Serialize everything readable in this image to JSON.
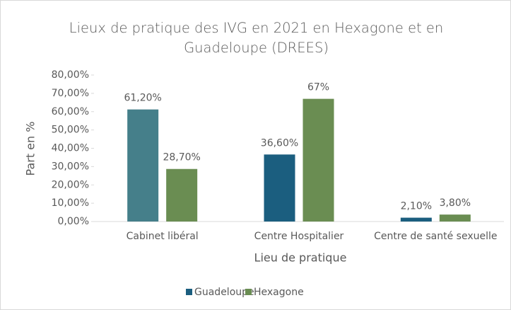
{
  "chart_data": {
    "type": "bar",
    "title": "Lieux de pratique des IVG en 2021 en Hexagone et en Guadeloupe (DREES)",
    "x_label": "Lieu de pratique",
    "y_label": "Part en %",
    "categories": [
      "Cabinet libéral",
      "Centre Hospitalier",
      "Centre de santé sexuelle"
    ],
    "series": [
      {
        "name": "Guadeloupe",
        "color": "#1b5e7f",
        "colors": [
          "#457f8a",
          "#1b5e7f",
          "#1b5e7f"
        ],
        "values": [
          61.2,
          36.6,
          2.1
        ],
        "value_labels": [
          "61,20%",
          "36,60%",
          "2,10%"
        ]
      },
      {
        "name": "Hexagone",
        "color": "#6a8d52",
        "values": [
          28.7,
          67,
          3.8
        ],
        "value_labels": [
          "28,70%",
          "67%",
          "3,80%"
        ]
      }
    ],
    "ylim": [
      0,
      80
    ],
    "yticks": [
      {
        "value": 0,
        "label": "0,00%"
      },
      {
        "value": 10,
        "label": "10,00%"
      },
      {
        "value": 20,
        "label": "20,00%"
      },
      {
        "value": 30,
        "label": "30,00%"
      },
      {
        "value": 40,
        "label": "40,00%"
      },
      {
        "value": 50,
        "label": "50,00%"
      },
      {
        "value": 60,
        "label": "60,00%"
      },
      {
        "value": 70,
        "label": "70,00%"
      },
      {
        "value": 80,
        "label": "80,00%"
      }
    ],
    "legend": "bottom"
  }
}
